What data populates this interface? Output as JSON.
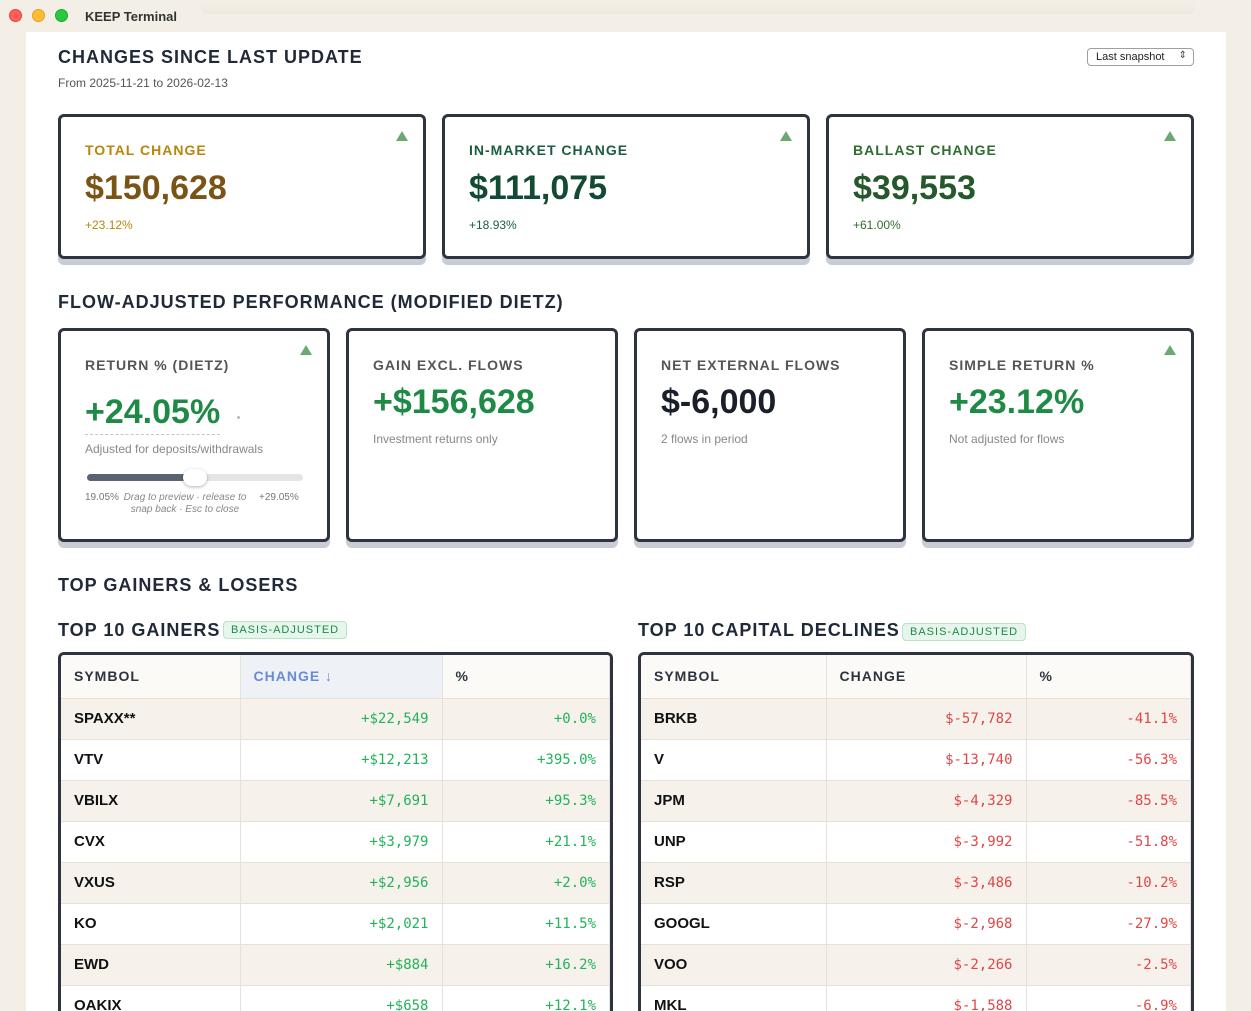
{
  "window": {
    "title": "KEEP Terminal"
  },
  "header": {
    "title": "CHANGES SINCE LAST UPDATE",
    "date_range": "From 2025-11-21 to 2026-02-13",
    "snapshot_select": "Last snapshot"
  },
  "summary_cards": [
    {
      "label": "TOTAL CHANGE",
      "value": "$150,628",
      "pct": "+23.12%",
      "color": "#b8860b"
    },
    {
      "label": "IN-MARKET CHANGE",
      "value": "$111,075",
      "pct": "+18.93%",
      "color": "#1a5e3f"
    },
    {
      "label": "BALLAST CHANGE",
      "value": "$39,553",
      "pct": "+61.00%",
      "color": "#2f6e2f"
    }
  ],
  "performance": {
    "title": "FLOW-ADJUSTED PERFORMANCE (MODIFIED DIETZ)",
    "cards": [
      {
        "label": "RETURN % (DIETZ)",
        "value": "+24.05%",
        "sub": "Adjusted for deposits/withdrawals"
      },
      {
        "label": "GAIN EXCL. FLOWS",
        "value": "+$156,628",
        "sub": "Investment returns only"
      },
      {
        "label": "NET EXTERNAL FLOWS",
        "value": "$-6,000",
        "sub": "2 flows in period"
      },
      {
        "label": "SIMPLE RETURN %",
        "value": "+23.12%",
        "sub": "Not adjusted for flows"
      }
    ],
    "slider": {
      "min_label": "19.05%",
      "max_label": "+29.05%",
      "hint": "Drag to preview · release to snap back · Esc to close",
      "position_fraction": 0.5
    }
  },
  "movers": {
    "title": "TOP GAINERS & LOSERS",
    "gainers": {
      "title": "TOP 10 GAINERS",
      "badge": "BASIS-ADJUSTED",
      "columns": [
        "SYMBOL",
        "CHANGE ↓",
        "%"
      ],
      "rows": [
        {
          "symbol": "SPAXX**",
          "change": "+$22,549",
          "pct": "+0.0%"
        },
        {
          "symbol": "VTV",
          "change": "+$12,213",
          "pct": "+395.0%"
        },
        {
          "symbol": "VBILX",
          "change": "+$7,691",
          "pct": "+95.3%"
        },
        {
          "symbol": "CVX",
          "change": "+$3,979",
          "pct": "+21.1%"
        },
        {
          "symbol": "VXUS",
          "change": "+$2,956",
          "pct": "+2.0%"
        },
        {
          "symbol": "KO",
          "change": "+$2,021",
          "pct": "+11.5%"
        },
        {
          "symbol": "EWD",
          "change": "+$884",
          "pct": "+16.2%"
        },
        {
          "symbol": "OAKIX",
          "change": "+$658",
          "pct": "+12.1%"
        }
      ]
    },
    "declines": {
      "title": "TOP 10 CAPITAL DECLINES",
      "badge": "BASIS-ADJUSTED",
      "columns": [
        "SYMBOL",
        "CHANGE",
        "%"
      ],
      "rows": [
        {
          "symbol": "BRKB",
          "change": "$-57,782",
          "pct": "-41.1%"
        },
        {
          "symbol": "V",
          "change": "$-13,740",
          "pct": "-56.3%"
        },
        {
          "symbol": "JPM",
          "change": "$-4,329",
          "pct": "-85.5%"
        },
        {
          "symbol": "UNP",
          "change": "$-3,992",
          "pct": "-51.8%"
        },
        {
          "symbol": "RSP",
          "change": "$-3,486",
          "pct": "-10.2%"
        },
        {
          "symbol": "GOOGL",
          "change": "$-2,968",
          "pct": "-27.9%"
        },
        {
          "symbol": "VOO",
          "change": "$-2,266",
          "pct": "-2.5%"
        },
        {
          "symbol": "MKL",
          "change": "$-1,588",
          "pct": "-6.9%"
        }
      ]
    }
  },
  "colors": {
    "gain": "#22b35a",
    "loss": "#e04747",
    "perf_positive": "#1f8a46",
    "perf_neutral": "#1a1f2b"
  }
}
